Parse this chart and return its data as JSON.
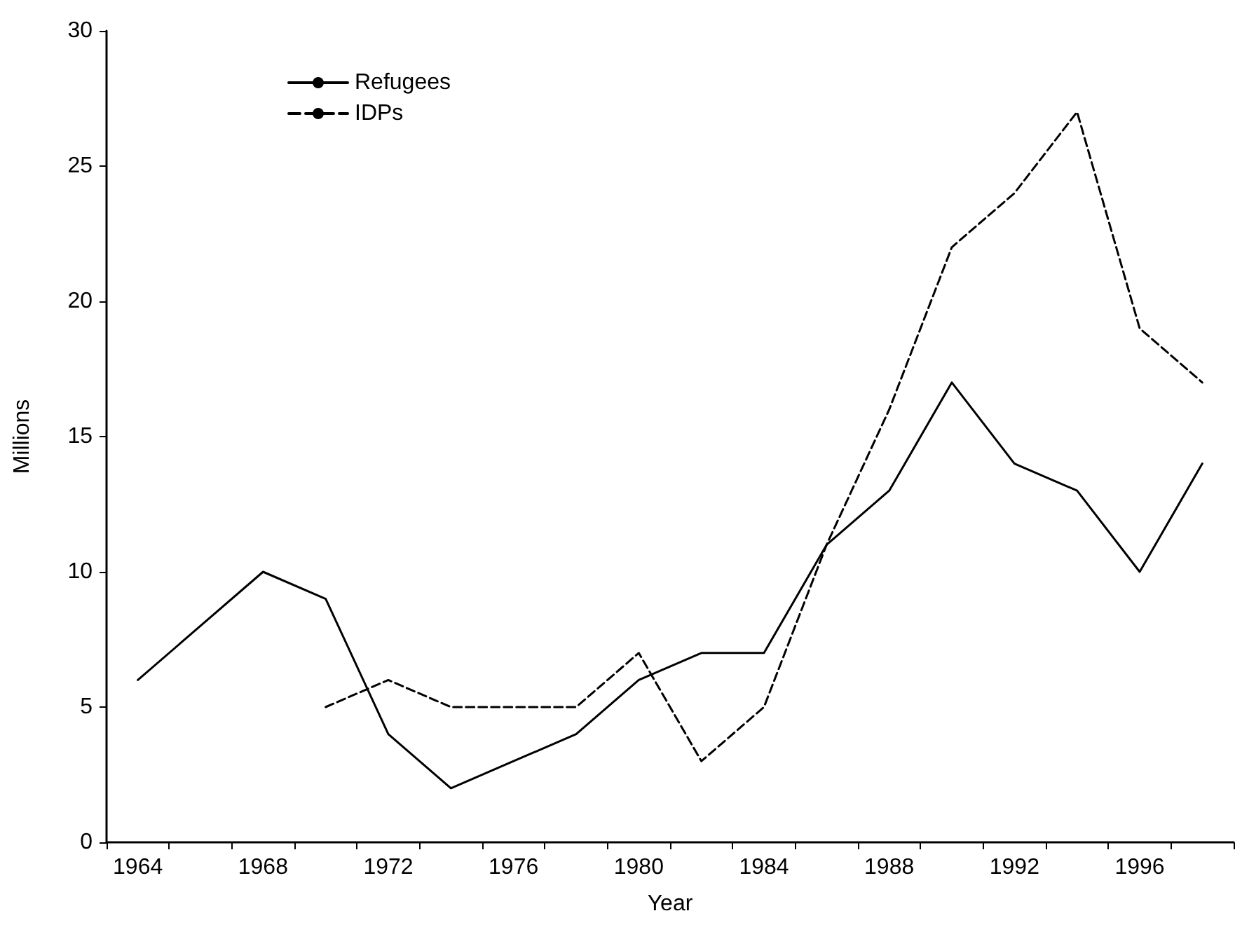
{
  "chart_data": {
    "type": "line",
    "xlabel": "Year",
    "ylabel": "Millions",
    "categories": [
      "1964",
      null,
      "1968",
      null,
      "1972",
      null,
      "1976",
      null,
      "1980",
      null,
      "1984",
      null,
      "1988",
      null,
      "1992",
      null,
      "1996",
      null
    ],
    "series": [
      {
        "name": "Refugees",
        "color": "#000000",
        "line_style": "solid",
        "values": [
          6,
          8,
          10,
          9,
          4,
          2,
          3,
          4,
          6,
          7,
          7,
          11,
          13,
          17,
          14,
          13,
          10,
          14
        ]
      },
      {
        "name": "IDPs",
        "color": "#000000",
        "line_style": "dashed",
        "values": [
          null,
          null,
          null,
          5,
          6,
          5,
          5,
          5,
          7,
          3,
          5,
          11,
          16,
          22,
          24,
          27,
          19,
          17
        ]
      }
    ],
    "ylim": [
      0,
      30
    ],
    "yticks": [
      0,
      5,
      10,
      15,
      20,
      25,
      30
    ],
    "grid": false,
    "legend": "top left",
    "marker": "none"
  }
}
